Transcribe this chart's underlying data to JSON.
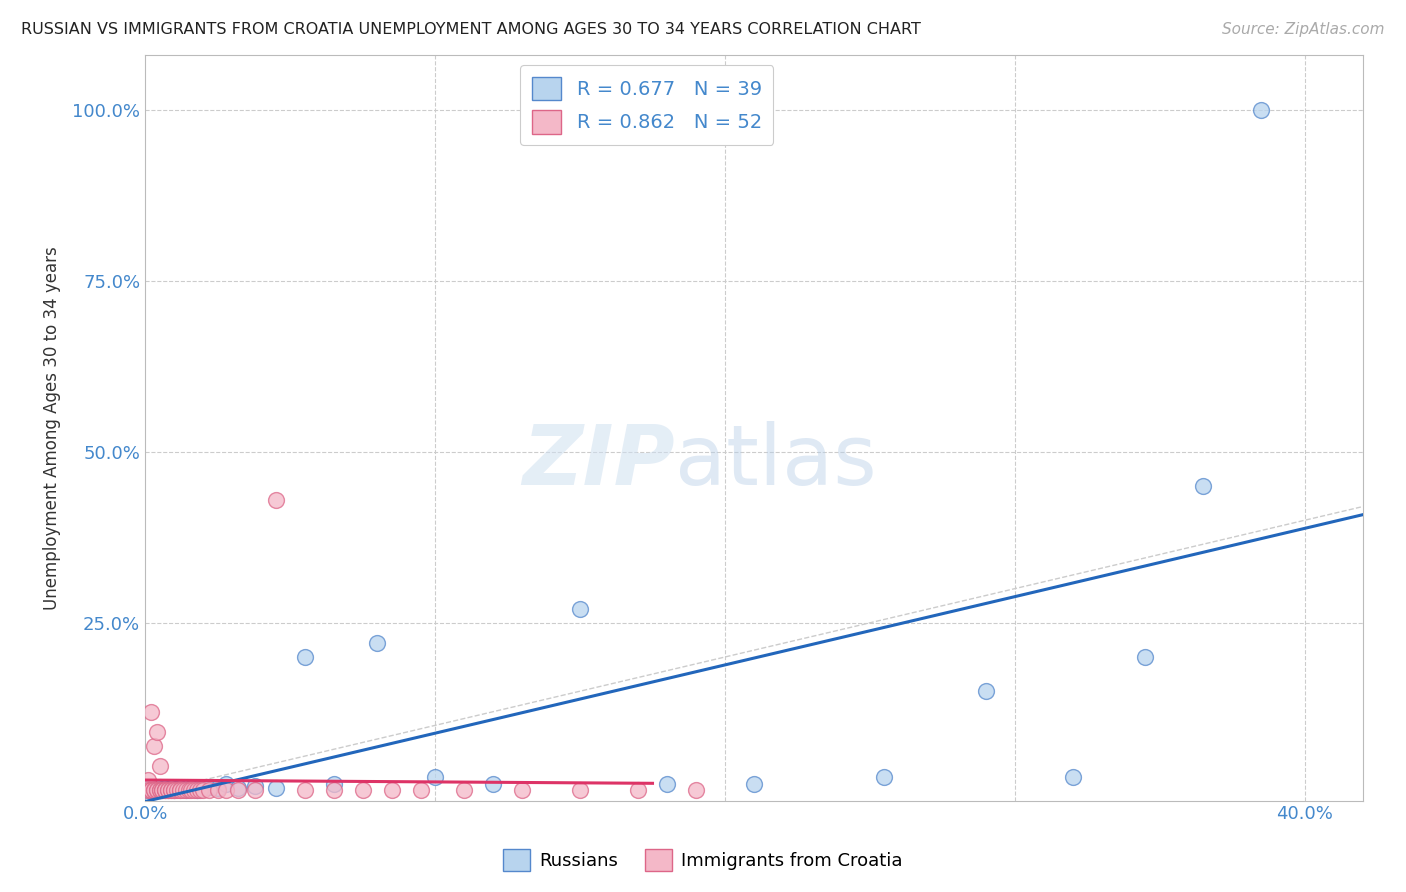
{
  "title": "RUSSIAN VS IMMIGRANTS FROM CROATIA UNEMPLOYMENT AMONG AGES 30 TO 34 YEARS CORRELATION CHART",
  "source": "Source: ZipAtlas.com",
  "ylabel": "Unemployment Among Ages 30 to 34 years",
  "xlim": [
    0.0,
    0.42
  ],
  "ylim": [
    -0.01,
    1.08
  ],
  "russian_color": "#b8d4ee",
  "russian_edge": "#5588cc",
  "croatia_color": "#f4b8c8",
  "croatia_edge": "#dd6688",
  "trend_russian_color": "#2266bb",
  "trend_croatia_color": "#dd3366",
  "diagonal_color": "#cccccc",
  "background": "#ffffff",
  "grid_color": "#cccccc",
  "R_russian": 0.677,
  "N_russian": 39,
  "R_croatia": 0.862,
  "N_croatia": 52,
  "russians_x": [
    0.001,
    0.002,
    0.002,
    0.003,
    0.003,
    0.004,
    0.004,
    0.005,
    0.005,
    0.006,
    0.007,
    0.008,
    0.009,
    0.01,
    0.012,
    0.014,
    0.016,
    0.018,
    0.02,
    0.022,
    0.025,
    0.028,
    0.032,
    0.038,
    0.045,
    0.055,
    0.065,
    0.08,
    0.1,
    0.12,
    0.15,
    0.18,
    0.21,
    0.255,
    0.29,
    0.32,
    0.345,
    0.365,
    0.385
  ],
  "russians_y": [
    0.005,
    0.005,
    0.01,
    0.005,
    0.01,
    0.005,
    0.008,
    0.005,
    0.01,
    0.005,
    0.008,
    0.005,
    0.008,
    0.005,
    0.008,
    0.005,
    0.008,
    0.005,
    0.008,
    0.01,
    0.008,
    0.015,
    0.008,
    0.012,
    0.008,
    0.2,
    0.015,
    0.22,
    0.025,
    0.015,
    0.27,
    0.015,
    0.015,
    0.025,
    0.15,
    0.025,
    0.2,
    0.45,
    1.0
  ],
  "croatia_x": [
    0.001,
    0.001,
    0.002,
    0.002,
    0.002,
    0.003,
    0.003,
    0.003,
    0.004,
    0.004,
    0.004,
    0.005,
    0.005,
    0.005,
    0.006,
    0.006,
    0.007,
    0.007,
    0.007,
    0.008,
    0.008,
    0.009,
    0.009,
    0.01,
    0.01,
    0.011,
    0.012,
    0.012,
    0.013,
    0.014,
    0.015,
    0.016,
    0.017,
    0.018,
    0.019,
    0.02,
    0.022,
    0.025,
    0.028,
    0.032,
    0.038,
    0.045,
    0.055,
    0.065,
    0.075,
    0.085,
    0.095,
    0.11,
    0.13,
    0.15,
    0.17,
    0.19
  ],
  "croatia_y": [
    0.02,
    0.005,
    0.12,
    0.005,
    0.005,
    0.07,
    0.005,
    0.005,
    0.09,
    0.005,
    0.005,
    0.04,
    0.005,
    0.005,
    0.005,
    0.005,
    0.005,
    0.005,
    0.005,
    0.005,
    0.005,
    0.005,
    0.005,
    0.005,
    0.005,
    0.005,
    0.005,
    0.005,
    0.005,
    0.005,
    0.005,
    0.005,
    0.005,
    0.005,
    0.005,
    0.005,
    0.005,
    0.005,
    0.005,
    0.005,
    0.005,
    0.43,
    0.005,
    0.005,
    0.005,
    0.005,
    0.005,
    0.005,
    0.005,
    0.005,
    0.005,
    0.005
  ]
}
